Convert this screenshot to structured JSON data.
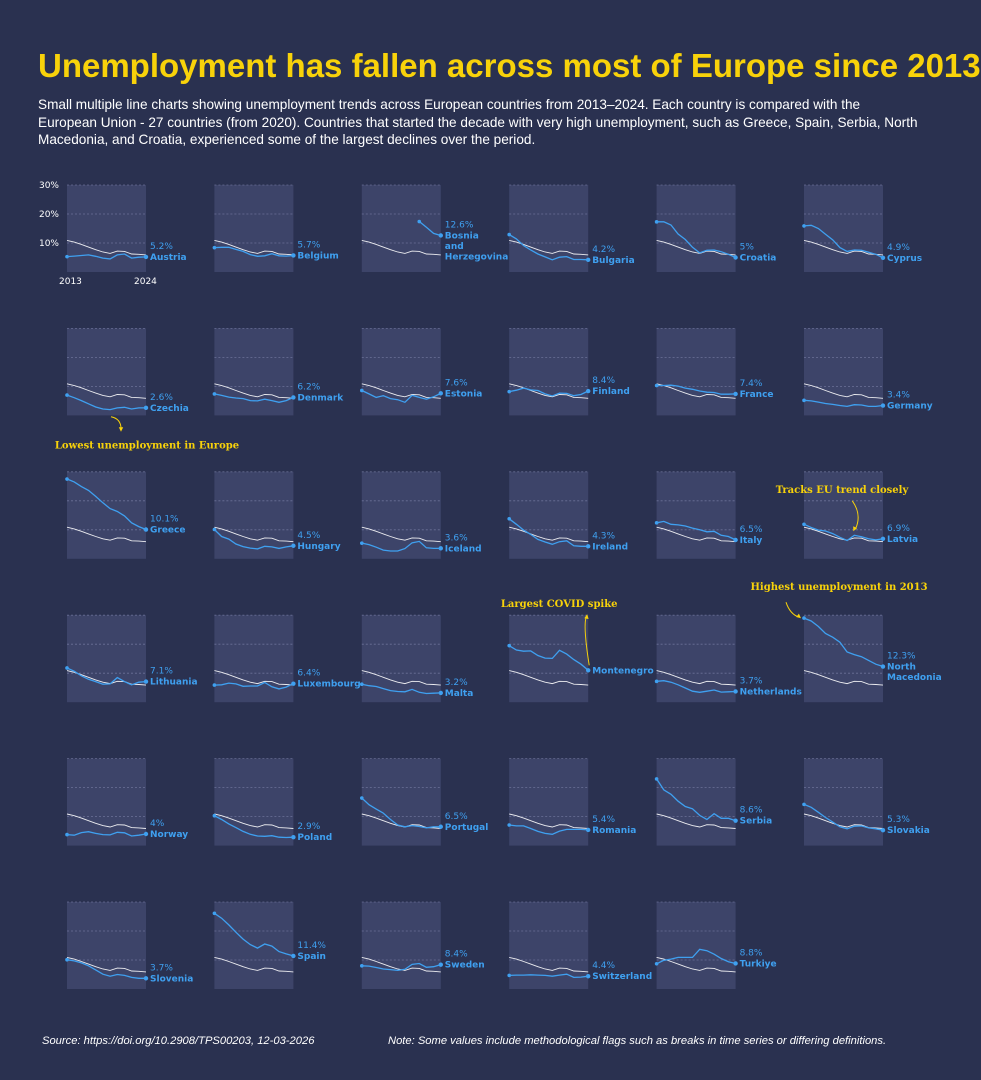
{
  "title": "Unemployment has fallen across most of Europe since 2013",
  "subtitle": "Small multiple line charts showing unemployment trends across European countries from 2013–2024. Each country is compared with the European Union - 27 countries (from 2020). Countries that started the decade with very high unemployment, such as Greece, Spain, Serbia, North Macedonia, and Croatia, experienced some of the largest declines over the period.",
  "source": "Source: https://doi.org/10.2908/TPS00203, 12-03-2026",
  "note": "Note: Some values include methodological flags such as breaks in time series or differing definitions.",
  "colors": {
    "background": "#2a3150",
    "panel": "#3d4469",
    "country_line": "#3fa0f0",
    "eu_line": "#ffffff",
    "title": "#f8d20a",
    "annotation": "#f8d20a"
  },
  "chart_data": {
    "type": "line",
    "layout": "small-multiples",
    "x": [
      2013,
      2014,
      2015,
      2016,
      2017,
      2018,
      2019,
      2020,
      2021,
      2022,
      2023,
      2024
    ],
    "x_tick_labels": [
      "2013",
      "2024"
    ],
    "ylim": [
      0,
      30
    ],
    "y_ticks": [
      10,
      20,
      30
    ],
    "y_tick_labels": [
      "10%",
      "20%",
      "30%"
    ],
    "reference_series": {
      "values": [
        10.9,
        10.3,
        9.5,
        8.6,
        7.7,
        6.9,
        6.4,
        7.2,
        7.1,
        6.2,
        6.1,
        5.9
      ]
    },
    "panels": [
      {
        "country": "Austria",
        "label_lines": [
          "Austria"
        ],
        "last_label": "5.2%",
        "values": [
          5.3,
          5.5,
          5.7,
          5.9,
          5.4,
          4.8,
          4.5,
          5.9,
          6.2,
          4.8,
          5.1,
          5.2
        ]
      },
      {
        "country": "Belgium",
        "label_lines": [
          "Belgium"
        ],
        "last_label": "5.7%",
        "values": [
          8.4,
          8.5,
          8.5,
          7.8,
          7.1,
          6.0,
          5.4,
          5.6,
          6.3,
          5.6,
          5.5,
          5.7
        ]
      },
      {
        "country": "Bosnia and Herzegovina",
        "label_lines": [
          "Bosnia",
          "and",
          "Herzegovina"
        ],
        "last_label": "12.6%",
        "values": [
          null,
          null,
          null,
          null,
          null,
          null,
          null,
          null,
          17.4,
          15.4,
          13.3,
          12.6
        ]
      },
      {
        "country": "Bulgaria",
        "label_lines": [
          "Bulgaria"
        ],
        "last_label": "4.2%",
        "values": [
          12.9,
          11.4,
          9.1,
          7.6,
          6.2,
          5.2,
          4.2,
          5.1,
          5.3,
          4.3,
          4.3,
          4.2
        ]
      },
      {
        "country": "Croatia",
        "label_lines": [
          "Croatia"
        ],
        "last_label": "5%",
        "values": [
          17.3,
          17.3,
          16.2,
          13.1,
          11.2,
          8.5,
          6.6,
          7.5,
          7.6,
          7.0,
          6.1,
          5.0
        ]
      },
      {
        "country": "Cyprus",
        "label_lines": [
          "Cyprus"
        ],
        "last_label": "4.9%",
        "values": [
          15.9,
          16.1,
          15.0,
          13.0,
          11.1,
          8.4,
          7.1,
          7.6,
          7.5,
          6.8,
          6.1,
          4.9
        ]
      },
      {
        "country": "Czechia",
        "label_lines": [
          "Czechia"
        ],
        "last_label": "2.6%",
        "values": [
          7.0,
          6.1,
          5.1,
          4.0,
          2.9,
          2.2,
          2.0,
          2.6,
          2.8,
          2.2,
          2.6,
          2.6
        ]
      },
      {
        "country": "Denmark",
        "label_lines": [
          "Denmark"
        ],
        "last_label": "6.2%",
        "values": [
          7.4,
          6.9,
          6.3,
          6.0,
          5.8,
          5.1,
          5.0,
          5.6,
          5.1,
          4.5,
          5.1,
          6.2
        ]
      },
      {
        "country": "Estonia",
        "label_lines": [
          "Estonia"
        ],
        "last_label": "7.6%",
        "values": [
          8.6,
          7.4,
          6.2,
          6.8,
          5.8,
          5.4,
          4.5,
          6.9,
          6.2,
          5.6,
          6.4,
          7.6
        ]
      },
      {
        "country": "Finland",
        "label_lines": [
          "Finland"
        ],
        "last_label": "8.4%",
        "values": [
          8.2,
          8.7,
          9.4,
          8.8,
          8.6,
          7.4,
          6.7,
          7.7,
          7.6,
          6.8,
          7.2,
          8.4
        ]
      },
      {
        "country": "France",
        "label_lines": [
          "France"
        ],
        "last_label": "7.4%",
        "values": [
          10.3,
          10.3,
          10.4,
          10.1,
          9.4,
          9.0,
          8.4,
          8.0,
          7.9,
          7.3,
          7.3,
          7.4
        ]
      },
      {
        "country": "Germany",
        "label_lines": [
          "Germany"
        ],
        "last_label": "3.4%",
        "values": [
          5.2,
          5.0,
          4.6,
          4.1,
          3.8,
          3.4,
          3.1,
          3.7,
          3.6,
          3.1,
          3.1,
          3.4
        ]
      },
      {
        "country": "Greece",
        "label_lines": [
          "Greece"
        ],
        "last_label": "10.1%",
        "values": [
          27.5,
          26.5,
          24.9,
          23.6,
          21.5,
          19.3,
          17.3,
          16.3,
          14.8,
          12.4,
          11.1,
          10.1
        ]
      },
      {
        "country": "Hungary",
        "label_lines": [
          "Hungary"
        ],
        "last_label": "4.5%",
        "values": [
          10.1,
          7.7,
          6.8,
          5.1,
          4.2,
          3.7,
          3.4,
          4.3,
          4.1,
          3.6,
          4.1,
          4.5
        ]
      },
      {
        "country": "Iceland",
        "label_lines": [
          "Iceland"
        ],
        "last_label": "3.6%",
        "values": [
          5.4,
          4.9,
          4.0,
          3.0,
          2.7,
          2.7,
          3.5,
          5.5,
          6.0,
          3.8,
          3.6,
          3.6
        ]
      },
      {
        "country": "Ireland",
        "label_lines": [
          "Ireland"
        ],
        "last_label": "4.3%",
        "values": [
          13.8,
          11.9,
          9.9,
          8.4,
          6.7,
          5.8,
          5.0,
          5.9,
          6.2,
          4.5,
          4.3,
          4.3
        ]
      },
      {
        "country": "Italy",
        "label_lines": [
          "Italy"
        ],
        "last_label": "6.5%",
        "values": [
          12.4,
          12.9,
          11.9,
          11.7,
          11.3,
          10.6,
          10.0,
          9.3,
          9.5,
          8.1,
          7.7,
          6.5
        ]
      },
      {
        "country": "Latvia",
        "label_lines": [
          "Latvia"
        ],
        "last_label": "6.9%",
        "values": [
          11.9,
          10.8,
          9.9,
          9.6,
          8.7,
          7.4,
          6.3,
          8.1,
          7.6,
          6.9,
          6.5,
          6.9
        ]
      },
      {
        "country": "Lithuania",
        "label_lines": [
          "Lithuania"
        ],
        "last_label": "7.1%",
        "values": [
          11.8,
          10.7,
          9.1,
          7.9,
          7.1,
          6.2,
          6.3,
          8.5,
          7.1,
          6.0,
          6.9,
          7.1
        ]
      },
      {
        "country": "Luxembourg",
        "label_lines": [
          "Luxembourg"
        ],
        "last_label": "6.4%",
        "values": [
          5.9,
          6.0,
          6.6,
          6.3,
          5.5,
          5.6,
          5.6,
          6.8,
          5.3,
          4.6,
          5.2,
          6.4
        ]
      },
      {
        "country": "Malta",
        "label_lines": [
          "Malta"
        ],
        "last_label": "3.2%",
        "values": [
          6.2,
          5.7,
          5.4,
          4.7,
          4.0,
          3.7,
          3.6,
          4.4,
          3.4,
          3.0,
          3.1,
          3.2
        ]
      },
      {
        "country": "Montenegro",
        "label_lines": [
          "Montenegro"
        ],
        "last_label": "",
        "values": [
          19.5,
          18.0,
          17.6,
          17.7,
          16.1,
          15.2,
          15.1,
          17.9,
          16.6,
          14.7,
          13.1,
          11.0
        ]
      },
      {
        "country": "Netherlands",
        "label_lines": [
          "Netherlands"
        ],
        "last_label": "3.7%",
        "values": [
          7.2,
          7.4,
          6.9,
          6.0,
          4.9,
          3.8,
          3.4,
          3.8,
          4.2,
          3.5,
          3.6,
          3.7
        ]
      },
      {
        "country": "North Macedonia",
        "label_lines": [
          "North",
          "Macedonia"
        ],
        "last_label": "12.3%",
        "values": [
          29.0,
          28.0,
          26.1,
          23.7,
          22.4,
          20.7,
          17.3,
          16.4,
          15.7,
          14.4,
          13.1,
          12.3
        ]
      },
      {
        "country": "Norway",
        "label_lines": [
          "Norway"
        ],
        "last_label": "4%",
        "values": [
          3.8,
          3.6,
          4.5,
          4.8,
          4.2,
          3.8,
          3.7,
          4.6,
          4.4,
          3.3,
          3.6,
          4.0
        ]
      },
      {
        "country": "Poland",
        "label_lines": [
          "Poland"
        ],
        "last_label": "2.9%",
        "values": [
          10.3,
          9.0,
          7.5,
          6.2,
          4.9,
          3.9,
          3.3,
          3.2,
          3.4,
          2.9,
          2.8,
          2.9
        ]
      },
      {
        "country": "Portugal",
        "label_lines": [
          "Portugal"
        ],
        "last_label": "6.5%",
        "values": [
          16.4,
          14.1,
          12.6,
          11.2,
          9.0,
          7.1,
          6.5,
          6.9,
          6.6,
          6.1,
          6.5,
          6.5
        ]
      },
      {
        "country": "Romania",
        "label_lines": [
          "Romania"
        ],
        "last_label": "5.4%",
        "values": [
          7.1,
          6.8,
          6.8,
          5.9,
          4.9,
          4.2,
          3.9,
          5.0,
          5.6,
          5.6,
          5.6,
          5.4
        ]
      },
      {
        "country": "Serbia",
        "label_lines": [
          "Serbia"
        ],
        "last_label": "8.6%",
        "values": [
          23.0,
          19.2,
          17.7,
          15.3,
          13.5,
          12.7,
          10.4,
          9.0,
          11.0,
          9.4,
          9.4,
          8.6
        ]
      },
      {
        "country": "Slovakia",
        "label_lines": [
          "Slovakia"
        ],
        "last_label": "5.3%",
        "values": [
          14.2,
          13.2,
          11.5,
          9.7,
          8.1,
          6.5,
          5.8,
          6.7,
          6.8,
          6.1,
          5.8,
          5.3
        ]
      },
      {
        "country": "Slovenia",
        "label_lines": [
          "Slovenia"
        ],
        "last_label": "3.7%",
        "values": [
          10.1,
          9.7,
          9.0,
          8.0,
          6.6,
          5.1,
          4.4,
          5.0,
          4.7,
          4.0,
          3.7,
          3.7
        ]
      },
      {
        "country": "Spain",
        "label_lines": [
          "Spain"
        ],
        "last_label": "11.4%",
        "values": [
          26.1,
          24.4,
          22.1,
          19.6,
          17.2,
          15.3,
          14.1,
          15.5,
          14.8,
          12.9,
          12.1,
          11.4
        ]
      },
      {
        "country": "Sweden",
        "label_lines": [
          "Sweden"
        ],
        "last_label": "8.4%",
        "values": [
          8.0,
          7.9,
          7.4,
          6.9,
          6.7,
          6.4,
          6.8,
          8.5,
          8.8,
          7.5,
          7.7,
          8.4
        ]
      },
      {
        "country": "Switzerland",
        "label_lines": [
          "Switzerland"
        ],
        "last_label": "4.4%",
        "values": [
          4.7,
          4.8,
          4.8,
          4.9,
          4.8,
          4.7,
          4.4,
          4.8,
          5.1,
          4.0,
          4.1,
          4.4
        ]
      },
      {
        "country": "Turkiye",
        "label_lines": [
          "Turkiye"
        ],
        "last_label": "8.8%",
        "values": [
          8.7,
          9.9,
          10.3,
          10.9,
          10.9,
          10.9,
          13.7,
          13.2,
          12.0,
          10.5,
          9.4,
          8.8
        ]
      }
    ],
    "annotations": [
      {
        "country": "Czechia",
        "text": "Lowest unemployment in Europe"
      },
      {
        "country": "Latvia",
        "text": "Tracks EU trend closely"
      },
      {
        "country": "Montenegro",
        "text": "Largest COVID spike"
      },
      {
        "country": "North Macedonia",
        "text": "Highest unemployment in 2013"
      }
    ]
  }
}
